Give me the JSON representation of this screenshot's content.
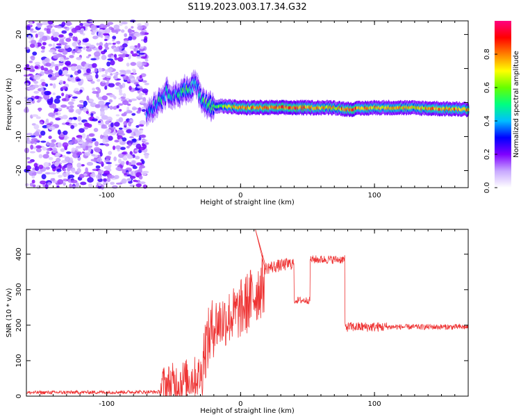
{
  "title": "S119.2023.003.17.34.G32",
  "chart_data": [
    {
      "type": "heatmap",
      "xlabel": "Height of straight line (km)",
      "ylabel": "Frequency (Hz)",
      "xlim": [
        -160,
        170
      ],
      "ylim": [
        -25,
        24
      ],
      "xticks": [
        -100,
        0,
        100
      ],
      "yticks": [
        -20,
        -10,
        0,
        10,
        20
      ],
      "colorbar": {
        "label": "Normalized spectral amplitude",
        "range": [
          0,
          1
        ],
        "ticks": [
          0.0,
          0.2,
          0.4,
          0.6,
          0.8
        ],
        "colormap": [
          "#ffffff",
          "#c8a8ff",
          "#7f00ff",
          "#0000ff",
          "#00bfff",
          "#00ff80",
          "#66ff00",
          "#ffff00",
          "#ff8000",
          "#ff0000",
          "#ff0080"
        ]
      },
      "noise_region_x": [
        -160,
        -70
      ],
      "ridge": [
        {
          "x": -70,
          "f": -3,
          "a": 0.35
        },
        {
          "x": -62,
          "f": 0,
          "a": 0.4
        },
        {
          "x": -55,
          "f": 3,
          "a": 0.45
        },
        {
          "x": -48,
          "f": 2,
          "a": 0.4
        },
        {
          "x": -42,
          "f": 4,
          "a": 0.45
        },
        {
          "x": -38,
          "f": 3,
          "a": 0.5
        },
        {
          "x": -34,
          "f": 6,
          "a": 0.4
        },
        {
          "x": -30,
          "f": 2,
          "a": 0.4
        },
        {
          "x": -25,
          "f": -1,
          "a": 0.5
        },
        {
          "x": -15,
          "f": -1,
          "a": 0.6
        },
        {
          "x": 0,
          "f": -1.5,
          "a": 0.75
        },
        {
          "x": 40,
          "f": -1.5,
          "a": 0.85
        },
        {
          "x": 70,
          "f": -1.5,
          "a": 0.7
        },
        {
          "x": 80,
          "f": -2,
          "a": 0.85
        },
        {
          "x": 100,
          "f": -1.5,
          "a": 0.75
        },
        {
          "x": 120,
          "f": -1.5,
          "a": 0.7
        },
        {
          "x": 170,
          "f": -2,
          "a": 0.8
        }
      ]
    },
    {
      "type": "line",
      "xlabel": "Height of straight line (km)",
      "ylabel": "SNR (10 * v/v)",
      "xlim": [
        -160,
        170
      ],
      "ylim": [
        0,
        470
      ],
      "xticks": [
        -100,
        0,
        100
      ],
      "yticks": [
        0,
        100,
        200,
        300,
        400
      ],
      "color": "#ee3333",
      "segments": [
        {
          "x0": -160,
          "x1": -60,
          "y0": 10,
          "y1": 12,
          "noise": 5
        },
        {
          "x0": -60,
          "x1": -28,
          "y0": 25,
          "y1": 60,
          "noise": 60
        },
        {
          "x0": -28,
          "x1": -20,
          "y0": 120,
          "y1": 200,
          "noise": 90
        },
        {
          "x0": -20,
          "x1": 0,
          "y0": 200,
          "y1": 240,
          "noise": 80
        },
        {
          "x0": 0,
          "x1": 18,
          "y0": 240,
          "y1": 320,
          "noise": 90
        },
        {
          "x0": 18,
          "x1": 40,
          "y0": 360,
          "y1": 375,
          "noise": 18
        },
        {
          "x0": 40,
          "x1": 52,
          "y0": 270,
          "y1": 270,
          "noise": 10
        },
        {
          "x0": 52,
          "x1": 78,
          "y0": 385,
          "y1": 385,
          "noise": 12
        },
        {
          "x0": 78,
          "x1": 110,
          "y0": 195,
          "y1": 195,
          "noise": 14
        },
        {
          "x0": 110,
          "x1": 170,
          "y0": 195,
          "y1": 195,
          "noise": 8
        }
      ],
      "peak": {
        "x": 11,
        "y": 470
      }
    }
  ]
}
